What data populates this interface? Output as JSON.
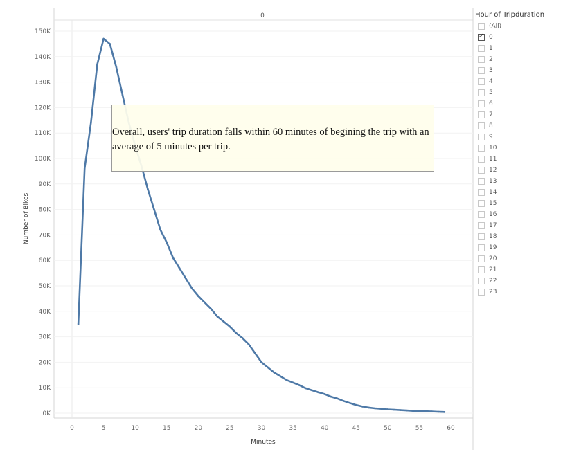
{
  "chart_data": {
    "type": "line",
    "column_header": "0",
    "xlabel": "Minutes",
    "ylabel": "Number of Bikes",
    "xlim": [
      -2,
      60
    ],
    "ylim": [
      0,
      152000
    ],
    "x_ticks": [
      0,
      5,
      10,
      15,
      20,
      25,
      30,
      35,
      40,
      45,
      50,
      55,
      60
    ],
    "x_tick_labels": [
      "0",
      "5",
      "10",
      "15",
      "20",
      "25",
      "30",
      "35",
      "40",
      "45",
      "50",
      "55",
      "60"
    ],
    "y_ticks": [
      0,
      10000,
      20000,
      30000,
      40000,
      50000,
      60000,
      70000,
      80000,
      90000,
      100000,
      110000,
      120000,
      130000,
      140000,
      150000
    ],
    "y_tick_labels": [
      "0K",
      "10K",
      "20K",
      "30K",
      "40K",
      "50K",
      "60K",
      "70K",
      "80K",
      "90K",
      "100K",
      "110K",
      "120K",
      "130K",
      "140K",
      "150K"
    ],
    "series": [
      {
        "x": [
          1,
          2,
          3,
          4,
          5,
          6,
          7,
          8,
          9,
          10,
          11,
          12,
          13,
          14,
          15,
          16,
          17,
          18,
          19,
          20,
          21,
          22,
          23,
          24,
          25,
          26,
          27,
          28,
          29,
          30,
          31,
          32,
          33,
          34,
          35,
          36,
          37,
          38,
          39,
          40,
          41,
          42,
          43,
          44,
          45,
          46,
          47,
          48,
          49,
          50,
          51,
          52,
          53,
          54,
          55,
          56,
          57,
          58,
          59
        ],
        "values": [
          35000,
          96000,
          114000,
          137000,
          147000,
          145000,
          136000,
          125000,
          114000,
          105000,
          97000,
          88000,
          80000,
          72000,
          67000,
          61000,
          57000,
          53000,
          49000,
          46000,
          43500,
          41000,
          38000,
          36000,
          34000,
          31500,
          29500,
          27000,
          23500,
          20000,
          18000,
          16000,
          14500,
          13000,
          12000,
          11000,
          9800,
          9000,
          8200,
          7500,
          6500,
          5800,
          4800,
          4000,
          3200,
          2600,
          2200,
          1900,
          1700,
          1500,
          1350,
          1200,
          1050,
          900,
          850,
          750,
          650,
          550,
          450
        ],
        "color": "#4e79a7"
      }
    ],
    "annotation": "Overall, users' trip duration falls within 60 minutes of begining the trip with an average of 5 minutes per trip."
  },
  "filter": {
    "title": "Hour of Tripduration",
    "options": [
      "(All)",
      "0",
      "1",
      "2",
      "3",
      "4",
      "5",
      "6",
      "7",
      "8",
      "9",
      "10",
      "11",
      "12",
      "13",
      "14",
      "15",
      "16",
      "17",
      "18",
      "19",
      "20",
      "21",
      "22",
      "23"
    ],
    "selected": [
      "0"
    ]
  }
}
